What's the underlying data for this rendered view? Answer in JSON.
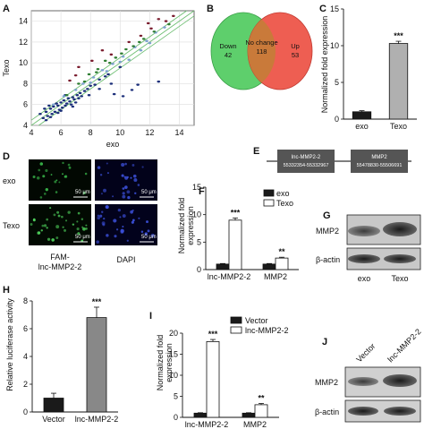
{
  "panels": {
    "A": {
      "label": "A",
      "chart_data": {
        "type": "scatter",
        "xlabel": "exo",
        "ylabel": "Texo",
        "xlim": [
          4,
          15
        ],
        "ylim": [
          4,
          15
        ],
        "x_ticks": [
          "4",
          "6",
          "8",
          "10",
          "12",
          "14"
        ],
        "y_ticks": [
          "4",
          "6",
          "8",
          "10",
          "12",
          "14"
        ],
        "grid": true,
        "guide_lines": [
          "y=x+0.5",
          "y=x",
          "y=x-0.5"
        ],
        "series": [
          {
            "color": "#1c2f7a",
            "points": [
              [
                4.6,
                5.1
              ],
              [
                4.8,
                4.7
              ],
              [
                5.0,
                5.3
              ],
              [
                5.1,
                4.9
              ],
              [
                5.3,
                5.6
              ],
              [
                5.4,
                5.1
              ],
              [
                5.5,
                5.8
              ],
              [
                5.6,
                5.3
              ],
              [
                5.8,
                5.9
              ],
              [
                5.9,
                5.5
              ],
              [
                6.0,
                6.2
              ],
              [
                6.1,
                5.7
              ],
              [
                6.2,
                6.4
              ],
              [
                6.3,
                5.9
              ],
              [
                6.4,
                6.1
              ],
              [
                6.5,
                6.6
              ],
              [
                6.6,
                6.3
              ],
              [
                6.7,
                6.0
              ],
              [
                6.8,
                6.7
              ],
              [
                6.9,
                6.5
              ],
              [
                7.0,
                6.2
              ],
              [
                7.1,
                6.9
              ],
              [
                7.2,
                6.6
              ],
              [
                7.3,
                7.1
              ],
              [
                7.4,
                6.8
              ],
              [
                5.2,
                5.9
              ],
              [
                5.7,
                6.1
              ],
              [
                6.3,
                6.9
              ],
              [
                4.9,
                5.6
              ],
              [
                5.0,
                4.5
              ],
              [
                5.3,
                4.8
              ],
              [
                5.8,
                5.2
              ],
              [
                6.0,
                5.4
              ],
              [
                7.6,
                7.3
              ],
              [
                7.8,
                7.5
              ],
              [
                8.0,
                7.8
              ],
              [
                8.3,
                7.9
              ],
              [
                8.6,
                8.4
              ],
              [
                9.0,
                8.7
              ],
              [
                6.8,
                5.8
              ],
              [
                7.9,
                6.9
              ],
              [
                8.6,
                7.5
              ],
              [
                9.4,
                8.0
              ],
              [
                9.6,
                7.0
              ],
              [
                10.2,
                6.8
              ],
              [
                10.8,
                7.4
              ],
              [
                11.2,
                7.9
              ],
              [
                12.6,
                8.2
              ],
              [
                10.0,
                9.6
              ],
              [
                9.2,
                8.9
              ]
            ]
          },
          {
            "color": "#7a9fcf",
            "points": [
              [
                5.5,
                6.0
              ],
              [
                6.2,
                6.8
              ],
              [
                7.0,
                7.4
              ],
              [
                7.5,
                8.0
              ],
              [
                8.2,
                8.6
              ],
              [
                8.8,
                9.3
              ],
              [
                9.5,
                9.9
              ],
              [
                10.2,
                10.6
              ],
              [
                11.0,
                11.5
              ],
              [
                11.8,
                12.1
              ],
              [
                12.4,
                12.9
              ],
              [
                13.0,
                13.4
              ],
              [
                8.0,
                8.1
              ],
              [
                9.1,
                9.2
              ],
              [
                10.0,
                10.1
              ],
              [
                10.6,
                10.3
              ],
              [
                11.4,
                11.2
              ],
              [
                12.0,
                11.9
              ]
            ]
          },
          {
            "color": "#2e7d32",
            "points": [
              [
                6.4,
                6.9
              ],
              [
                7.6,
                8.2
              ],
              [
                8.4,
                9.1
              ],
              [
                9.3,
                10.0
              ],
              [
                10.1,
                10.9
              ],
              [
                10.9,
                11.6
              ],
              [
                11.6,
                12.3
              ],
              [
                12.3,
                13.0
              ],
              [
                7.9,
                8.9
              ],
              [
                9.0,
                10.2
              ],
              [
                8.5,
                9.4
              ],
              [
                9.7,
                10.5
              ],
              [
                10.4,
                11.3
              ],
              [
                11.3,
                12.0
              ],
              [
                13.3,
                13.7
              ],
              [
                7.2,
                8.0
              ]
            ]
          },
          {
            "color": "#7a1c2e",
            "points": [
              [
                6.6,
                8.3
              ],
              [
                7.2,
                9.6
              ],
              [
                8.1,
                10.2
              ],
              [
                8.8,
                11.2
              ],
              [
                9.4,
                10.8
              ],
              [
                10.6,
                12.0
              ],
              [
                11.4,
                12.6
              ],
              [
                12.1,
                13.3
              ],
              [
                12.6,
                14.2
              ],
              [
                13.1,
                14.0
              ],
              [
                13.6,
                14.5
              ],
              [
                7.0,
                8.8
              ],
              [
                11.9,
                13.8
              ]
            ]
          }
        ]
      }
    },
    "B": {
      "label": "B",
      "venn": {
        "left": {
          "name": "Down",
          "count": "42",
          "color": "#5ecf6c"
        },
        "overlap": {
          "name": "No change",
          "count": "118",
          "color": "#c97a3a"
        },
        "right": {
          "name": "Up",
          "count": "53",
          "color": "#ee5e52"
        }
      }
    },
    "C": {
      "label": "C",
      "chart_data": {
        "type": "bar",
        "ylabel": "Normalized fold expression",
        "ylim": [
          0,
          15
        ],
        "y_ticks": [
          "0",
          "5",
          "10",
          "15"
        ],
        "categories": [
          "exo",
          "Texo"
        ],
        "values": [
          1.0,
          10.3
        ],
        "errors": [
          0.15,
          0.3
        ],
        "colors": [
          "#1a1a1a",
          "#b0b0b0"
        ],
        "annotations": [
          {
            "category": "Texo",
            "text": "***"
          }
        ]
      }
    },
    "D": {
      "label": "D",
      "rows": [
        "exo",
        "Texo"
      ],
      "columns": [
        "FAM-lnc-MMP2-2",
        "DAPI"
      ],
      "column_lines": [
        [
          "FAM-"
        ],
        [
          "lnc-MMP2-2"
        ]
      ],
      "col_label_1a": "FAM-",
      "col_label_1b": "lnc-MMP2-2",
      "col_label_2": "DAPI",
      "scale_bar": "50 μm"
    },
    "E": {
      "label": "E",
      "genes": [
        {
          "name": "lnc-MMP2-2",
          "range": "55332354-55332967"
        },
        {
          "name": "MMP2",
          "range": "55478830-55506691"
        }
      ]
    },
    "F": {
      "label": "F",
      "chart_data": {
        "type": "bar",
        "ylabel": "Normalized fold expression",
        "ylabel_lines": [
          "Normalized fold",
          "expression"
        ],
        "ylim": [
          0,
          15
        ],
        "y_ticks": [
          "0",
          "5",
          "10",
          "15"
        ],
        "categories": [
          "lnc-MMP2-2",
          "MMP2"
        ],
        "series": [
          {
            "name": "exo",
            "values": [
              1.0,
              1.0
            ],
            "errors": [
              0.1,
              0.1
            ],
            "color": "#1a1a1a"
          },
          {
            "name": "Texo",
            "values": [
              9.0,
              2.1
            ],
            "errors": [
              0.4,
              0.15
            ],
            "color": "#ffffff"
          }
        ],
        "annotations": [
          {
            "category": "lnc-MMP2-2",
            "text": "***"
          },
          {
            "category": "MMP2",
            "text": "**"
          }
        ],
        "legend": "top-right"
      }
    },
    "G": {
      "label": "G",
      "bands": [
        "MMP2",
        "β-actin"
      ],
      "lanes": [
        "exo",
        "Texo"
      ]
    },
    "H": {
      "label": "H",
      "chart_data": {
        "type": "bar",
        "ylabel": "Relative luciferase activity",
        "ylim": [
          0,
          8
        ],
        "y_ticks": [
          "0",
          "2",
          "4",
          "6",
          "8"
        ],
        "categories": [
          "Vector",
          "lnc-MMP2-2"
        ],
        "values": [
          1.0,
          6.8
        ],
        "errors": [
          0.35,
          0.75
        ],
        "colors": [
          "#1a1a1a",
          "#888888"
        ],
        "annotations": [
          {
            "category": "lnc-MMP2-2",
            "text": "***"
          }
        ]
      }
    },
    "I": {
      "label": "I",
      "chart_data": {
        "type": "bar",
        "ylabel": "Normalized fold expression",
        "ylabel_lines": [
          "Normalized fold",
          "expression"
        ],
        "ylim": [
          0,
          20
        ],
        "y_ticks": [
          "0",
          "5",
          "10",
          "15",
          "20"
        ],
        "categories": [
          "lnc-MMP2-2",
          "MMP2"
        ],
        "series": [
          {
            "name": "Vector",
            "values": [
              1.0,
              1.0
            ],
            "errors": [
              0.1,
              0.1
            ],
            "color": "#1a1a1a"
          },
          {
            "name": "lnc-MMP2-2",
            "values": [
              18.0,
              3.0
            ],
            "errors": [
              0.5,
              0.3
            ],
            "color": "#ffffff"
          }
        ],
        "annotations": [
          {
            "category": "lnc-MMP2-2",
            "text": "***"
          },
          {
            "category": "MMP2",
            "text": "**"
          }
        ],
        "legend": "top"
      }
    },
    "J": {
      "label": "J",
      "bands": [
        "MMP2",
        "β-actin"
      ],
      "lanes": [
        "Vector",
        "lnc-MMP2-2"
      ]
    }
  }
}
